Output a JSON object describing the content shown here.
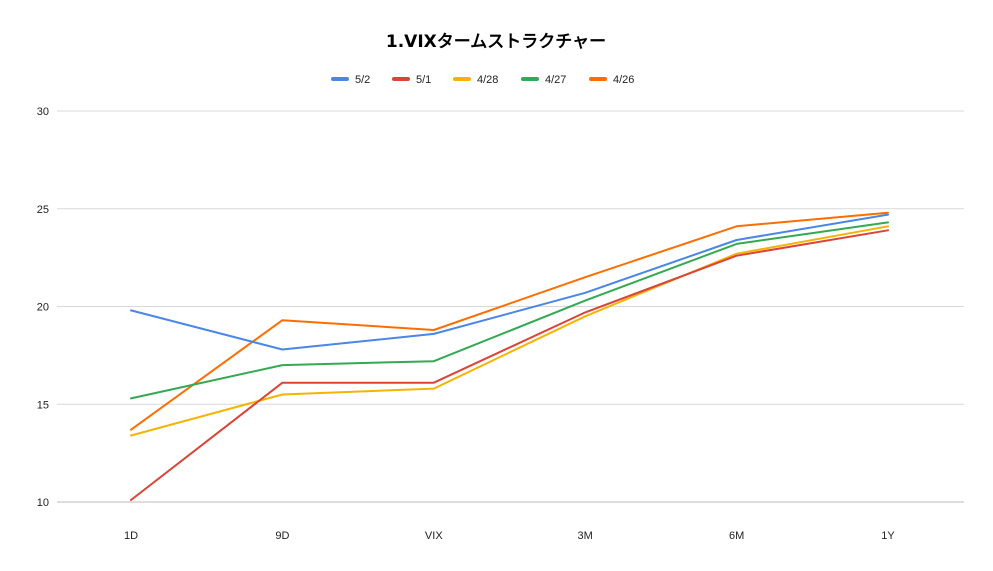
{
  "chart_data": {
    "type": "line",
    "title": "1.VIXタームストラクチャー",
    "xlabel": "",
    "ylabel": "",
    "categories": [
      "1D",
      "9D",
      "VIX",
      "3M",
      "6M",
      "1Y"
    ],
    "ylim": [
      10,
      30
    ],
    "yticks": [
      10,
      15,
      20,
      25,
      30
    ],
    "grid": true,
    "legend_position": "top",
    "series": [
      {
        "name": "5/2",
        "color": "#4a86e8",
        "values": [
          19.8,
          17.8,
          18.6,
          20.7,
          23.4,
          24.7
        ]
      },
      {
        "name": "5/1",
        "color": "#db4437",
        "values": [
          10.1,
          16.1,
          16.1,
          19.7,
          22.6,
          23.9
        ]
      },
      {
        "name": "4/28",
        "color": "#f4b400",
        "values": [
          13.4,
          15.5,
          15.8,
          19.5,
          22.7,
          24.1
        ]
      },
      {
        "name": "4/27",
        "color": "#34a853",
        "values": [
          15.3,
          17.0,
          17.2,
          20.3,
          23.2,
          24.3
        ]
      },
      {
        "name": "4/26",
        "color": "#ff6d00",
        "values": [
          13.7,
          19.3,
          18.8,
          21.5,
          24.1,
          24.8
        ]
      }
    ]
  }
}
